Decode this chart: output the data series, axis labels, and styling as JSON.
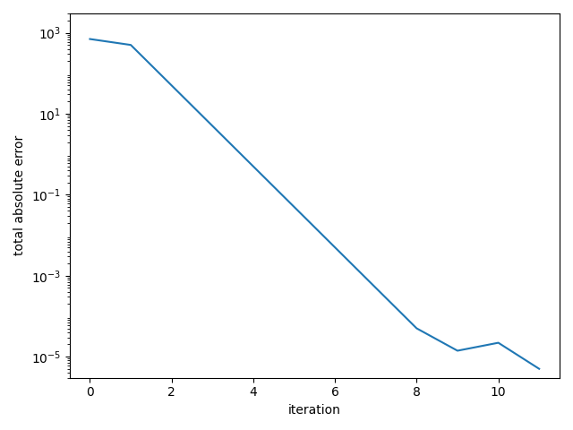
{
  "x": [
    0,
    1,
    2,
    3,
    4,
    5,
    6,
    7,
    8,
    9,
    10,
    11
  ],
  "y": [
    700,
    500,
    50,
    5,
    0.5,
    0.05,
    0.005,
    0.0005,
    5e-05,
    1.4e-05,
    2.2e-05,
    5e-06
  ],
  "line_color": "#1f77b4",
  "line_width": 1.5,
  "xlabel": "iteration",
  "ylabel": "total absolute error",
  "xlim": [
    -0.5,
    11.5
  ],
  "ylim_bottom": 3e-06,
  "ylim_top": 3000,
  "xticks": [
    0,
    2,
    4,
    6,
    8,
    10
  ],
  "yticks": [
    1e-05,
    0.001,
    0.1,
    10.0,
    1000.0
  ],
  "title": "",
  "background_color": "#ffffff"
}
